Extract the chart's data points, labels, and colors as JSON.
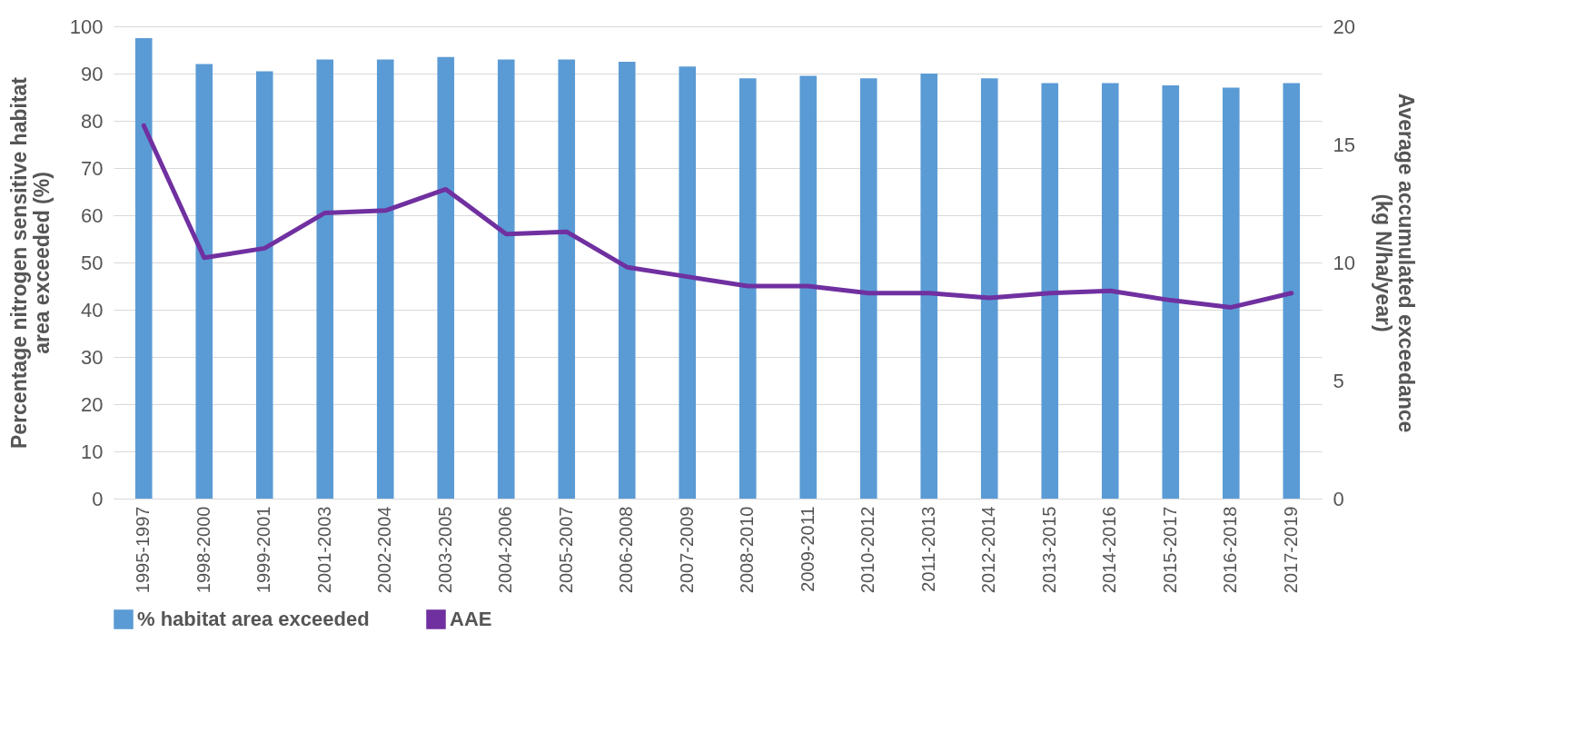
{
  "chart_data": {
    "type": "bar",
    "ylabel": "Percentage nitrogen sensitive habitat\narea exceeded (%)",
    "y2label": "Average accumulated exceedance\n(kg N/ha/year)",
    "categories": [
      "1995-1997",
      "1998-2000",
      "1999-2001",
      "2001-2003",
      "2002-2004",
      "2003-2005",
      "2004-2006",
      "2005-2007",
      "2006-2008",
      "2007-2009",
      "2008-2010",
      "2009-2011",
      "2010-2012",
      "2011-2013",
      "2012-2014",
      "2013-2015",
      "2014-2016",
      "2015-2017",
      "2016-2018",
      "2017-2019"
    ],
    "series": [
      {
        "name": "% habitat area exceeded",
        "color": "#5b9bd5",
        "values": [
          97.5,
          92,
          90.5,
          93,
          93,
          93.5,
          93,
          93,
          92.5,
          91.5,
          89,
          89.5,
          89,
          90,
          89,
          88,
          88,
          87.5,
          87,
          88
        ]
      },
      {
        "name": "AAE",
        "type": "line",
        "axis": "y2",
        "color": "#7030a0",
        "values": [
          15.8,
          10.2,
          10.6,
          12.1,
          12.2,
          13.1,
          11.2,
          11.3,
          9.8,
          9.4,
          9.0,
          9.0,
          8.7,
          8.7,
          8.5,
          8.7,
          8.8,
          8.4,
          8.1,
          8.7
        ]
      }
    ],
    "ylim": [
      0,
      100
    ],
    "yticks": [
      0,
      10,
      20,
      30,
      40,
      50,
      60,
      70,
      80,
      90,
      100
    ],
    "y2lim": [
      0,
      20
    ],
    "y2ticks": [
      0,
      5,
      10,
      15,
      20
    ],
    "grid": "y",
    "legend": "bottom"
  }
}
